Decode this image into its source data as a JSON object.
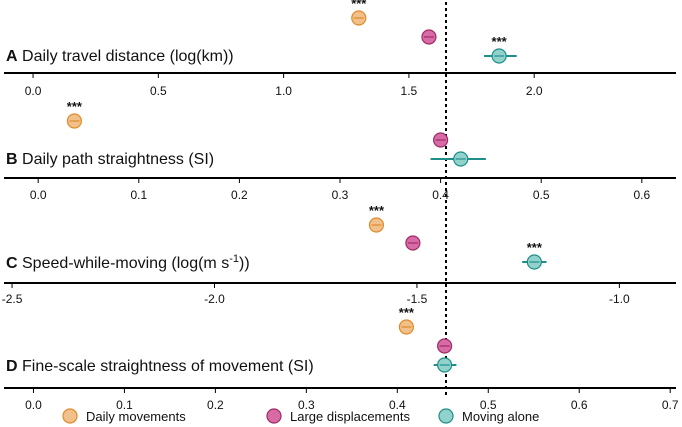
{
  "legend": [
    {
      "label": "Daily movements",
      "color": "#F2C08A",
      "stroke": "#E08A2C"
    },
    {
      "label": "Large displacements",
      "color": "#D86AA6",
      "stroke": "#9E2C66"
    },
    {
      "label": "Moving alone",
      "color": "#92D2CD",
      "stroke": "#1F8E88"
    }
  ],
  "chart_data": [
    {
      "type": "scatter",
      "letter": "A",
      "title": "Daily travel distance (log(km))",
      "xlim": [
        -0.1,
        2.55
      ],
      "ticks": [
        0.0,
        0.5,
        1.0,
        1.5,
        2.0
      ],
      "tick_labels": [
        "0.0",
        "0.5",
        "1.0",
        "1.5",
        "2.0"
      ],
      "reference_line": 1.58,
      "series": [
        {
          "name": "Daily movements",
          "value": 1.3,
          "ci": [
            1.29,
            1.31
          ],
          "stars": "***"
        },
        {
          "name": "Large displacements",
          "value": 1.58,
          "ci": [
            1.57,
            1.59
          ],
          "stars": ""
        },
        {
          "name": "Moving alone",
          "value": 1.86,
          "ci": [
            1.8,
            1.93
          ],
          "stars": "***"
        }
      ]
    },
    {
      "type": "scatter",
      "letter": "B",
      "title": "Daily path straightness (SI)",
      "xlim": [
        -0.03,
        0.63
      ],
      "ticks": [
        0.0,
        0.1,
        0.2,
        0.3,
        0.4,
        0.5,
        0.6
      ],
      "tick_labels": [
        "0.0",
        "0.1",
        "0.2",
        "0.3",
        "0.4",
        "0.5",
        "0.6"
      ],
      "reference_line": 0.4,
      "series": [
        {
          "name": "Daily movements",
          "value": 0.036,
          "ci": [
            0.032,
            0.04
          ],
          "stars": "***"
        },
        {
          "name": "Large displacements",
          "value": 0.4,
          "ci": [
            0.397,
            0.403
          ],
          "stars": ""
        },
        {
          "name": "Moving alone",
          "value": 0.42,
          "ci": [
            0.39,
            0.445
          ],
          "stars": ""
        }
      ]
    },
    {
      "type": "scatter",
      "letter": "C",
      "title": "Speed-while-moving (log(m s",
      "title_superscript": "-1",
      "title_suffix": "))",
      "xlim": [
        -2.51,
        -0.87
      ],
      "ticks": [
        -2.5,
        -2.0,
        -1.5,
        -1.0
      ],
      "tick_labels": [
        "-2.5",
        "-2.0",
        "-1.5",
        "-1.0"
      ],
      "reference_line": -1.51,
      "series": [
        {
          "name": "Daily movements",
          "value": -1.6,
          "ci": [
            -1.61,
            -1.59
          ],
          "stars": "***"
        },
        {
          "name": "Large displacements",
          "value": -1.51,
          "ci": [
            -1.515,
            -1.505
          ],
          "stars": ""
        },
        {
          "name": "Moving alone",
          "value": -1.21,
          "ci": [
            -1.24,
            -1.18
          ],
          "stars": "***"
        }
      ]
    },
    {
      "type": "scatter",
      "letter": "D",
      "title": "Fine-scale straightness of movement (SI)",
      "xlim": [
        -0.028,
        0.702
      ],
      "ticks": [
        0.0,
        0.1,
        0.2,
        0.3,
        0.4,
        0.5,
        0.6,
        0.7
      ],
      "tick_labels": [
        "0.0",
        "0.1",
        "0.2",
        "0.3",
        "0.4",
        "0.5",
        "0.6",
        "0.7"
      ],
      "reference_line": 0.452,
      "series": [
        {
          "name": "Daily movements",
          "value": 0.41,
          "ci": [
            0.405,
            0.415
          ],
          "stars": "***"
        },
        {
          "name": "Large displacements",
          "value": 0.452,
          "ci": [
            0.449,
            0.455
          ],
          "stars": ""
        },
        {
          "name": "Moving alone",
          "value": 0.452,
          "ci": [
            0.44,
            0.465
          ],
          "stars": ""
        }
      ]
    }
  ]
}
